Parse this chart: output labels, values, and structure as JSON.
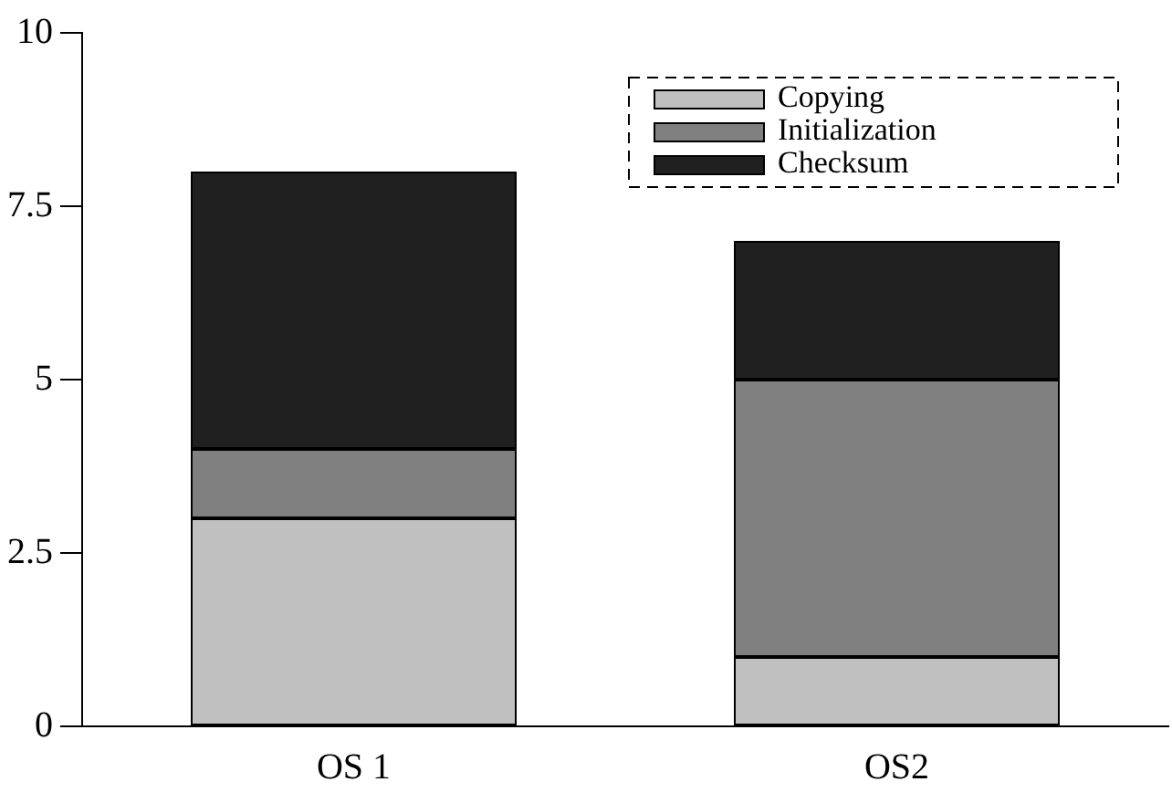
{
  "chart_data": {
    "type": "bar",
    "stacked": true,
    "categories": [
      "OS 1",
      "OS2"
    ],
    "series": [
      {
        "name": "Copying",
        "color": "#c0c0c0",
        "values": [
          3,
          1
        ]
      },
      {
        "name": "Initialization",
        "color": "#808080",
        "values": [
          1,
          4
        ]
      },
      {
        "name": "Checksum",
        "color": "#202020",
        "values": [
          4,
          2
        ]
      }
    ],
    "ylim": [
      0,
      10
    ],
    "yticks": [
      0,
      {
        "value": 2.5,
        "label": "2.5"
      },
      5,
      {
        "value": 7.5,
        "label": "7.5"
      },
      10
    ],
    "grid": false,
    "legend": "top right"
  }
}
